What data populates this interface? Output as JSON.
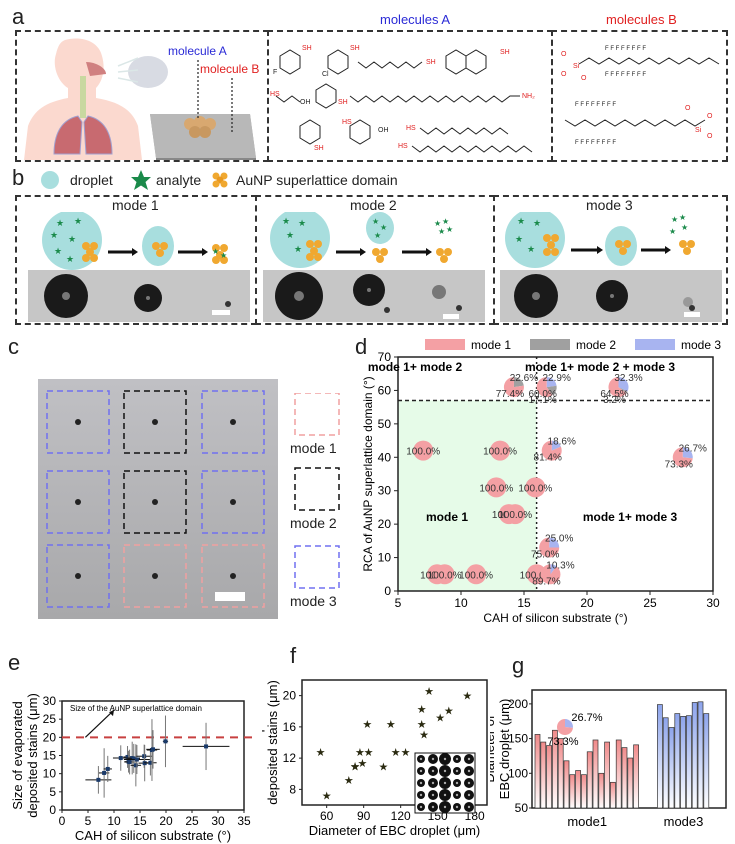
{
  "panels": {
    "a": {
      "label": "a",
      "molecule_a_label": "molecule A",
      "molecule_b_label": "molecule B",
      "molecules_a_title": "molecules A",
      "molecules_b_title": "molecules B",
      "molecules_a": [
        "4-fluorothiophenol",
        "4-chlorothiophenol",
        "1-octanethiol",
        "2-naphthalenethiol",
        "thioglycolic acid",
        "benzyl mercaptan",
        "oleylamine",
        "4-nitrothiophenol",
        "3-mercaptobenzoic acid",
        "1-dodecanethiol",
        "1-hexadecanethiol"
      ],
      "molecules_b": [
        "perfluorodecyl trimethoxysilane",
        "perfluorodecyl triethoxysilane"
      ],
      "colors": {
        "molecule_a": "#2a2ad6",
        "molecule_b": "#e02020",
        "sh_group": "#e02020"
      }
    },
    "b": {
      "label": "b",
      "legend": [
        {
          "icon": "droplet-icon",
          "label": "droplet"
        },
        {
          "icon": "analyte-star-icon",
          "label": "analyte"
        },
        {
          "icon": "aunp-cluster-icon",
          "label": "AuNP superlattice domain"
        }
      ],
      "modes": [
        {
          "title": "mode 1"
        },
        {
          "title": "mode 2"
        },
        {
          "title": "mode 3"
        }
      ]
    },
    "c": {
      "label": "c",
      "grid": [
        [
          "mode 3",
          "mode 2",
          "mode 3"
        ],
        [
          "mode 3",
          "mode 2",
          "mode 3"
        ],
        [
          "mode 3",
          "mode 1",
          "mode 1"
        ]
      ],
      "legend": [
        {
          "label": "mode 1",
          "color": "#f0a0a0"
        },
        {
          "label": "mode 2",
          "color": "#111111"
        },
        {
          "label": "mode 3",
          "color": "#7070f0"
        }
      ]
    },
    "d": {
      "label": "d"
    },
    "e": {
      "label": "e"
    },
    "f": {
      "label": "f"
    },
    "g": {
      "label": "g"
    }
  },
  "chart_data": [
    {
      "id": "d",
      "type": "scatter",
      "subtype": "pie-scatter",
      "xlabel": "CAH of silicon substrate (°)",
      "ylabel": "RCA of AuNP superlattice domain (°)",
      "xlim": [
        5,
        30
      ],
      "ylim": [
        0,
        70
      ],
      "xticks": [
        5,
        10,
        15,
        20,
        25,
        30
      ],
      "yticks": [
        0,
        10,
        20,
        30,
        40,
        50,
        60,
        70
      ],
      "legend": [
        {
          "name": "mode 1",
          "color": "#f4a0a4"
        },
        {
          "name": "mode 2",
          "color": "#a0a0a0"
        },
        {
          "name": "mode 3",
          "color": "#a8b4f0"
        }
      ],
      "legend_position": "top",
      "regions": [
        {
          "label": "mode 1+ mode 2",
          "x": [
            5,
            16
          ],
          "y": [
            57,
            70
          ]
        },
        {
          "label": "mode 1+ mode 2 + mode 3",
          "x": [
            16,
            30
          ],
          "y": [
            57,
            70
          ]
        },
        {
          "label": "mode 1",
          "x": [
            5,
            16
          ],
          "y": [
            0,
            57
          ],
          "fill": "#e6fbe8"
        },
        {
          "label": "mode 1+ mode 3",
          "x": [
            16,
            30
          ],
          "y": [
            0,
            57
          ]
        }
      ],
      "divider_x": 16,
      "divider_y": 57,
      "points": [
        {
          "x": 14.2,
          "y": 61,
          "mode1": 77.4,
          "mode2": 22.6,
          "mode3": 0,
          "labels": [
            "22.6%",
            "77.4%"
          ]
        },
        {
          "x": 16.8,
          "y": 61,
          "mode1": 60.0,
          "mode2": 17.1,
          "mode3": 22.9,
          "labels": [
            "22.9%",
            "60.0%",
            "17.1%"
          ]
        },
        {
          "x": 22.5,
          "y": 61,
          "mode1": 64.5,
          "mode2": 3.2,
          "mode3": 32.3,
          "labels": [
            "32.3%",
            "64.5%",
            "3.2%"
          ]
        },
        {
          "x": 7.0,
          "y": 42,
          "mode1": 100,
          "mode2": 0,
          "mode3": 0,
          "labels": [
            "100.0%"
          ]
        },
        {
          "x": 13.1,
          "y": 42,
          "mode1": 100,
          "mode2": 0,
          "mode3": 0,
          "labels": [
            "100.0%"
          ]
        },
        {
          "x": 17.2,
          "y": 42,
          "mode1": 81.4,
          "mode2": 0,
          "mode3": 18.6,
          "labels": [
            "18.6%",
            "81.4%"
          ]
        },
        {
          "x": 27.6,
          "y": 40,
          "mode1": 73.3,
          "mode2": 0,
          "mode3": 26.7,
          "labels": [
            "26.7%",
            "73.3%"
          ]
        },
        {
          "x": 12.8,
          "y": 31,
          "mode1": 100,
          "mode2": 0,
          "mode3": 0,
          "labels": [
            "100.0%"
          ]
        },
        {
          "x": 15.9,
          "y": 31,
          "mode1": 100,
          "mode2": 0,
          "mode3": 0,
          "labels": [
            "100.0%"
          ]
        },
        {
          "x": 13.8,
          "y": 23,
          "mode1": 100,
          "mode2": 0,
          "mode3": 0,
          "labels": [
            "100.0%"
          ]
        },
        {
          "x": 14.3,
          "y": 23,
          "mode1": 100,
          "mode2": 0,
          "mode3": 0,
          "labels": [
            "100.0%"
          ]
        },
        {
          "x": 17.0,
          "y": 13,
          "mode1": 75.0,
          "mode2": 0,
          "mode3": 25.0,
          "labels": [
            "25.0%",
            "75.0%"
          ]
        },
        {
          "x": 8.1,
          "y": 5,
          "mode1": 100,
          "mode2": 0,
          "mode3": 0,
          "labels": [
            "100.0%"
          ]
        },
        {
          "x": 8.7,
          "y": 5,
          "mode1": 100,
          "mode2": 0,
          "mode3": 0,
          "labels": [
            "100.0%"
          ]
        },
        {
          "x": 11.2,
          "y": 5,
          "mode1": 100,
          "mode2": 0,
          "mode3": 0,
          "labels": [
            "100.0%"
          ]
        },
        {
          "x": 16.0,
          "y": 5,
          "mode1": 100,
          "mode2": 0,
          "mode3": 0,
          "labels": [
            "100.0%"
          ]
        },
        {
          "x": 17.1,
          "y": 5,
          "mode1": 89.7,
          "mode2": 0,
          "mode3": 10.3,
          "labels": [
            "10.3%",
            "89.7%"
          ]
        }
      ]
    },
    {
      "id": "e",
      "type": "scatter",
      "subtype": "errorbar",
      "xlabel": "CAH of silicon substrate (°)",
      "ylabel": "Size of evaporated deposited stains (μm)",
      "xlim": [
        0,
        35
      ],
      "ylim": [
        0,
        30
      ],
      "xticks": [
        0,
        5,
        10,
        15,
        20,
        25,
        30,
        35
      ],
      "yticks": [
        0,
        5,
        10,
        15,
        20,
        25,
        30
      ],
      "reference_line": {
        "y": 20,
        "label": "Size of the AuNP superlattice domain",
        "color": "#c84040"
      },
      "points": [
        {
          "x": 7.0,
          "y": 8.3,
          "xerr": 2.5,
          "yerr": 3.8
        },
        {
          "x": 8.1,
          "y": 10.2,
          "xerr": 1.0,
          "yerr": 6.8
        },
        {
          "x": 8.8,
          "y": 11.3,
          "xerr": 0.8,
          "yerr": 3.6
        },
        {
          "x": 11.3,
          "y": 14.3,
          "xerr": 1.5,
          "yerr": 3.5
        },
        {
          "x": 12.6,
          "y": 14.6,
          "xerr": 0.8,
          "yerr": 3.0
        },
        {
          "x": 12.8,
          "y": 13.3,
          "xerr": 0.8,
          "yerr": 3.0
        },
        {
          "x": 13.0,
          "y": 13.2,
          "xerr": 1.0,
          "yerr": 3.4
        },
        {
          "x": 13.5,
          "y": 14.3,
          "xerr": 1.5,
          "yerr": 4.5
        },
        {
          "x": 13.8,
          "y": 14.2,
          "xerr": 1.2,
          "yerr": 4.0
        },
        {
          "x": 14.2,
          "y": 12.3,
          "xerr": 1.0,
          "yerr": 5.8
        },
        {
          "x": 14.4,
          "y": 13.9,
          "xerr": 2.5,
          "yerr": 4.0
        },
        {
          "x": 15.8,
          "y": 14.8,
          "xerr": 1.5,
          "yerr": 3.2
        },
        {
          "x": 15.9,
          "y": 12.9,
          "xerr": 1.2,
          "yerr": 5.0
        },
        {
          "x": 17.0,
          "y": 13.0,
          "xerr": 1.2,
          "yerr": 3.5
        },
        {
          "x": 17.3,
          "y": 16.5,
          "xerr": 1.0,
          "yerr": 8.5
        },
        {
          "x": 17.5,
          "y": 16.7,
          "xerr": 1.3,
          "yerr": 5.3
        },
        {
          "x": 19.9,
          "y": 18.9,
          "xerr": 0.5,
          "yerr": 7.1
        },
        {
          "x": 27.7,
          "y": 17.5,
          "xerr": 4.5,
          "yerr": 6.5
        }
      ]
    },
    {
      "id": "f",
      "type": "scatter",
      "xlabel": "Diameter of EBC droplet (μm)",
      "ylabel": "Size of evaporated deposited stains (μm)",
      "xlim": [
        40,
        190
      ],
      "ylim": [
        6,
        22
      ],
      "xticks": [
        60,
        90,
        120,
        150,
        180
      ],
      "yticks": [
        8,
        12,
        16,
        20
      ],
      "marker": "star",
      "points": [
        {
          "x": 55,
          "y": 12.8
        },
        {
          "x": 60,
          "y": 7.2
        },
        {
          "x": 78,
          "y": 9.2
        },
        {
          "x": 83,
          "y": 11.0
        },
        {
          "x": 83,
          "y": 10.9
        },
        {
          "x": 87,
          "y": 12.8
        },
        {
          "x": 89,
          "y": 11.4
        },
        {
          "x": 93,
          "y": 16.4
        },
        {
          "x": 94,
          "y": 12.8
        },
        {
          "x": 106,
          "y": 10.9
        },
        {
          "x": 112,
          "y": 16.4
        },
        {
          "x": 116,
          "y": 12.8
        },
        {
          "x": 124,
          "y": 12.8
        },
        {
          "x": 137,
          "y": 18.3
        },
        {
          "x": 137,
          "y": 16.4
        },
        {
          "x": 139,
          "y": 15.0
        },
        {
          "x": 143,
          "y": 20.6
        },
        {
          "x": 152,
          "y": 17.2
        },
        {
          "x": 159,
          "y": 18.1
        },
        {
          "x": 174,
          "y": 20.0
        }
      ],
      "inset": "micrograph of EBC droplets"
    },
    {
      "id": "g",
      "type": "bar",
      "xlabel": "",
      "ylabel": "Diameter of EBC droplet (μm)",
      "ylim": [
        50,
        220
      ],
      "yticks": [
        50,
        100,
        150,
        200
      ],
      "categories": [
        "mode1",
        "mode3"
      ],
      "series": [
        {
          "name": "mode1",
          "color": "#f08a8a",
          "values": [
            156,
            145,
            140,
            162,
            150,
            118,
            98,
            104,
            98,
            131,
            148,
            100,
            145,
            87,
            148,
            137,
            122,
            141
          ]
        },
        {
          "name": "mode3",
          "color": "#8da4ec",
          "values": [
            199,
            180,
            166,
            186,
            182,
            183,
            202,
            203,
            186
          ]
        }
      ],
      "inset_pie": {
        "slices": [
          {
            "name": "mode 1",
            "value": 73.3,
            "color": "#f4a0a4"
          },
          {
            "name": "mode 3",
            "value": 26.7,
            "color": "#a8b4f0"
          }
        ],
        "labels": [
          "26.7%",
          "73.3%"
        ]
      }
    }
  ]
}
